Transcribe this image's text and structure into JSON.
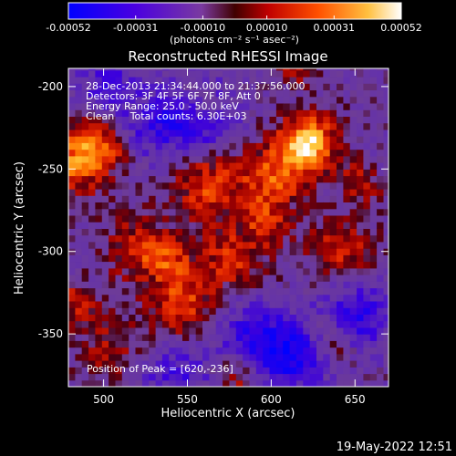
{
  "colorbar": {
    "tick_labels": [
      "-0.00052",
      "-0.00031",
      "-0.00010",
      "0.00010",
      "0.00031",
      "0.00052"
    ],
    "range": [
      -0.00052,
      0.00052
    ],
    "unit_label": "(photons cm⁻² s⁻¹ asec⁻²)",
    "colors": [
      "#0000ff",
      "#5a00d0",
      "#7a3aa0",
      "#b00000",
      "#e03000",
      "#ff8000",
      "#ffd040",
      "#ffffff"
    ]
  },
  "chart_data": {
    "type": "heatmap",
    "title": "Reconstructed RHESSI Image",
    "xlabel": "Heliocentric X (arcsec)",
    "ylabel": "Heliocentric Y (arcsec)",
    "xlim": [
      479,
      670
    ],
    "ylim": [
      -382,
      -189
    ],
    "x_ticks": [
      500,
      550,
      600,
      650
    ],
    "y_ticks": [
      -200,
      -250,
      -300,
      -350
    ],
    "peak_position": [
      620,
      -236
    ],
    "annotations": [
      "28-Dec-2013 21:34:44.000 to 21:37:56.000",
      "Detectors: 3F 4F 5F 6F 7F 8F, Att 0",
      "Energy Range: 25.0 - 50.0 keV",
      "Clean     Total counts: 6.30E+03"
    ],
    "peak_label": "Position of Peak = [620,-236]",
    "hot_regions": [
      {
        "x": 620,
        "y": -236,
        "level": 1.0
      },
      {
        "x": 483,
        "y": -245,
        "level": 0.75
      },
      {
        "x": 600,
        "y": -258,
        "level": 0.6
      },
      {
        "x": 560,
        "y": -262,
        "level": 0.55
      },
      {
        "x": 520,
        "y": -300,
        "level": 0.5
      },
      {
        "x": 545,
        "y": -335,
        "level": 0.55
      },
      {
        "x": 575,
        "y": -305,
        "level": 0.5
      },
      {
        "x": 640,
        "y": -300,
        "level": 0.45
      },
      {
        "x": 500,
        "y": -360,
        "level": 0.35
      }
    ],
    "cold_regions": [
      {
        "x": 555,
        "y": -220,
        "level": -0.55
      },
      {
        "x": 530,
        "y": -225,
        "level": -0.4
      },
      {
        "x": 610,
        "y": -365,
        "level": -0.7
      },
      {
        "x": 650,
        "y": -340,
        "level": -0.55
      },
      {
        "x": 585,
        "y": -350,
        "level": -0.45
      },
      {
        "x": 540,
        "y": -375,
        "level": -0.4
      },
      {
        "x": 500,
        "y": -200,
        "level": -0.35
      }
    ]
  },
  "footer": {
    "timestamp": "19-May-2022 12:51"
  }
}
